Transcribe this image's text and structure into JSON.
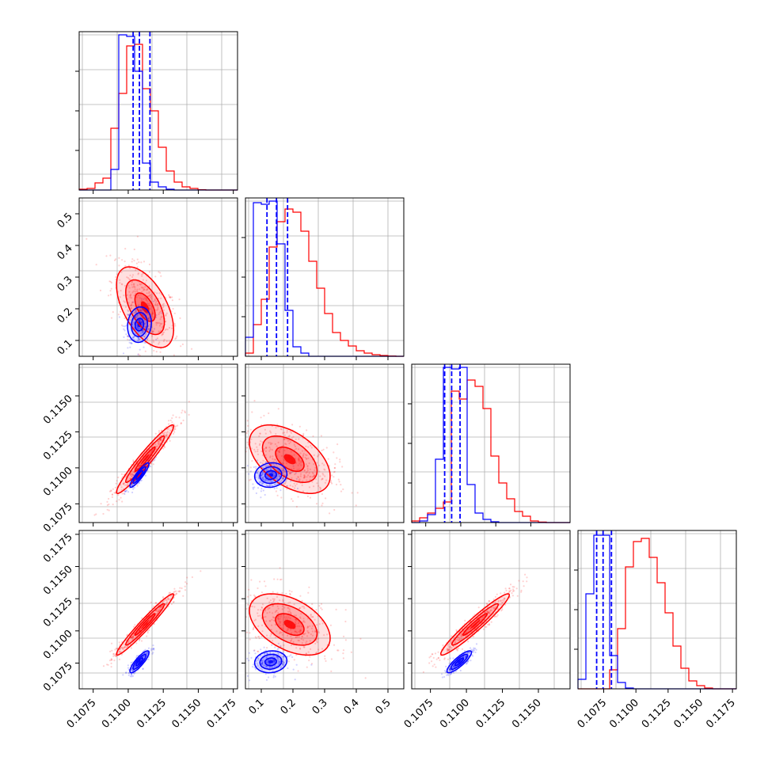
{
  "colors": {
    "series_a": "#ff0000",
    "series_b": "#0000ff",
    "grid": "#b0b0b0",
    "frame": "#000000",
    "background": "#ffffff"
  },
  "chart_data": {
    "type": "corner",
    "title": "",
    "grid": true,
    "legend": "none",
    "series": [
      {
        "color": "#ff0000",
        "p1": {
          "mean": 0.1112,
          "sd": 0.0012
        },
        "p2": {
          "mean": 0.205,
          "sd": 0.075
        },
        "p3": {
          "mean": 0.1106,
          "sd": 0.0014
        },
        "p4": {
          "mean": 0.1105,
          "sd": 0.0014
        }
      },
      {
        "color": "#0000ff",
        "p1": {
          "mean": 0.1108,
          "sd": 0.0004
        },
        "p2": {
          "mean": 0.14,
          "sd": 0.033
        },
        "p3": {
          "mean": 0.1095,
          "sd": 0.0005
        },
        "p4": {
          "mean": 0.1076,
          "sd": 0.0005
        }
      }
    ],
    "histograms": [
      {
        "param": "p1",
        "range": [
          0.1065,
          0.1178
        ],
        "ylim": [
          0,
          1.0
        ],
        "yticks": [
          0.25,
          0.5,
          0.75
        ],
        "red_bins": [
          0.005,
          0.01,
          0.045,
          0.075,
          0.39,
          0.61,
          0.91,
          0.92,
          0.64,
          0.5,
          0.27,
          0.12,
          0.05,
          0.02,
          0.01,
          0.002,
          0,
          0,
          0,
          0
        ],
        "blue_bins": [
          0,
          0,
          0,
          0,
          0.13,
          0.98,
          0.97,
          0.75,
          0.17,
          0.05,
          0.02,
          0.005,
          0,
          0,
          0,
          0,
          0,
          0,
          0,
          0
        ],
        "quantile_lines": [
          0.11035,
          0.1108,
          0.11155
        ]
      },
      {
        "param": "p2",
        "range": [
          0.05,
          0.55
        ],
        "ylim": [
          0,
          1.0
        ],
        "yticks": [
          0.25,
          0.5,
          0.75
        ],
        "red_bins": [
          0.02,
          0.2,
          0.36,
          0.69,
          0.85,
          0.93,
          0.91,
          0.79,
          0.6,
          0.43,
          0.27,
          0.15,
          0.1,
          0.065,
          0.035,
          0.02,
          0.01,
          0.005,
          0.002,
          0
        ],
        "blue_bins": [
          0.12,
          0.97,
          0.96,
          0.98,
          0.71,
          0.29,
          0.06,
          0.02,
          0,
          0,
          0,
          0,
          0,
          0,
          0,
          0,
          0,
          0,
          0,
          0
        ],
        "quantile_lines": [
          0.118,
          0.148,
          0.183
        ]
      },
      {
        "param": "p3",
        "range": [
          0.1065,
          0.1178
        ],
        "ylim": [
          0,
          1.0
        ],
        "yticks": [
          0.25,
          0.5,
          0.75
        ],
        "red_bins": [
          0.01,
          0.03,
          0.06,
          0.09,
          0.13,
          0.83,
          0.78,
          0.9,
          0.86,
          0.72,
          0.42,
          0.25,
          0.15,
          0.07,
          0.04,
          0.01,
          0.003,
          0,
          0,
          0
        ],
        "blue_bins": [
          0,
          0.01,
          0.05,
          0.4,
          0.98,
          0.97,
          0.98,
          0.24,
          0.06,
          0.02,
          0.005,
          0,
          0,
          0,
          0,
          0,
          0,
          0,
          0,
          0
        ],
        "quantile_lines": [
          0.10885,
          0.10935,
          0.10995
        ]
      },
      {
        "param": "p4",
        "range": [
          0.1055,
          0.1178
        ],
        "ylim": [
          0,
          1.0
        ],
        "yticks": [
          0.25,
          0.5,
          0.75
        ],
        "red_bins": [
          0,
          0,
          0,
          0,
          0.12,
          0.38,
          0.77,
          0.93,
          0.95,
          0.83,
          0.67,
          0.48,
          0.27,
          0.13,
          0.05,
          0.02,
          0.005,
          0,
          0,
          0
        ],
        "blue_bins": [
          0.06,
          0.6,
          0.97,
          0.97,
          0.21,
          0.04,
          0.005,
          0,
          0,
          0,
          0,
          0,
          0,
          0,
          0,
          0,
          0,
          0,
          0,
          0
        ],
        "quantile_lines": [
          0.10695,
          0.10745,
          0.1081
        ]
      }
    ],
    "panels": [
      {
        "row": "p2",
        "col": "p1",
        "xrange": [
          0.1065,
          0.1178
        ],
        "yrange": [
          0.05,
          0.55
        ],
        "yticks": [
          "0.1",
          "0.2",
          "0.3",
          "0.4",
          "0.5"
        ],
        "yvals": [
          0.1,
          0.2,
          0.3,
          0.4,
          0.5
        ],
        "red": {
          "cx": 0.1112,
          "cy": 0.205,
          "sx": 0.0012,
          "sy": 0.075,
          "rho": -0.55
        },
        "blue": {
          "cx": 0.1108,
          "cy": 0.15,
          "sx": 0.0005,
          "sy": 0.033,
          "rho": 0.1
        }
      },
      {
        "row": "p3",
        "col": "p1",
        "xrange": [
          0.1065,
          0.1178
        ],
        "yrange": [
          0.1062,
          0.1172
        ],
        "yticks": [
          "0.1075",
          "0.1100",
          "0.1125",
          "0.1150"
        ],
        "yvals": [
          0.1075,
          0.11,
          0.1125,
          0.115
        ],
        "red": {
          "cx": 0.1112,
          "cy": 0.1106,
          "sx": 0.0012,
          "sy": 0.0014,
          "rho": 0.96
        },
        "blue": {
          "cx": 0.1108,
          "cy": 0.1095,
          "sx": 0.0004,
          "sy": 0.0005,
          "rho": 0.9
        }
      },
      {
        "row": "p3",
        "col": "p2",
        "xrange": [
          0.05,
          0.55
        ],
        "yrange": [
          0.1062,
          0.1172
        ],
        "red": {
          "cx": 0.19,
          "cy": 0.1106,
          "sx": 0.075,
          "sy": 0.0014,
          "rho": -0.5
        },
        "blue": {
          "cx": 0.13,
          "cy": 0.1095,
          "sx": 0.03,
          "sy": 0.0005,
          "rho": 0.1
        }
      },
      {
        "row": "p4",
        "col": "p1",
        "xrange": [
          0.1065,
          0.1178
        ],
        "yrange": [
          0.1055,
          0.1178
        ],
        "xticks": [
          "0.1075",
          "0.1100",
          "0.1125",
          "0.1150",
          "0.1175"
        ],
        "xvals": [
          0.1075,
          0.11,
          0.1125,
          0.115,
          0.1175
        ],
        "yticks": [
          "0.1075",
          "0.1100",
          "0.1125",
          "0.1150",
          "0.1175"
        ],
        "yvals": [
          0.1075,
          0.11,
          0.1125,
          0.115,
          0.1175
        ],
        "red": {
          "cx": 0.1112,
          "cy": 0.1105,
          "sx": 0.0012,
          "sy": 0.0014,
          "rho": 0.97
        },
        "blue": {
          "cx": 0.1108,
          "cy": 0.1076,
          "sx": 0.0004,
          "sy": 0.0005,
          "rho": 0.85
        }
      },
      {
        "row": "p4",
        "col": "p2",
        "xrange": [
          0.05,
          0.55
        ],
        "yrange": [
          0.1055,
          0.1178
        ],
        "xticks": [
          "0.1",
          "0.2",
          "0.3",
          "0.4",
          "0.5"
        ],
        "xvals": [
          0.1,
          0.2,
          0.3,
          0.4,
          0.5
        ],
        "red": {
          "cx": 0.19,
          "cy": 0.1105,
          "sx": 0.075,
          "sy": 0.0014,
          "rho": -0.45
        },
        "blue": {
          "cx": 0.13,
          "cy": 0.1076,
          "sx": 0.03,
          "sy": 0.0005,
          "rho": 0.1
        }
      },
      {
        "row": "p4",
        "col": "p3",
        "xrange": [
          0.1062,
          0.1172
        ],
        "yrange": [
          0.1055,
          0.1178
        ],
        "xticks": [
          "0.1075",
          "0.1100",
          "0.1125",
          "0.1150"
        ],
        "xvals": [
          0.1075,
          0.11,
          0.1125,
          0.115
        ],
        "red": {
          "cx": 0.1106,
          "cy": 0.1105,
          "sx": 0.0014,
          "sy": 0.0014,
          "rho": 0.96
        },
        "blue": {
          "cx": 0.1095,
          "cy": 0.1076,
          "sx": 0.0005,
          "sy": 0.0005,
          "rho": 0.85
        }
      }
    ],
    "diagonal_axes": {
      "p4": {
        "xticks": [
          "0.1075",
          "0.1100",
          "0.1125",
          "0.1150",
          "0.1175"
        ],
        "xvals": [
          0.1075,
          0.11,
          0.1125,
          0.115,
          0.1175
        ]
      }
    }
  }
}
